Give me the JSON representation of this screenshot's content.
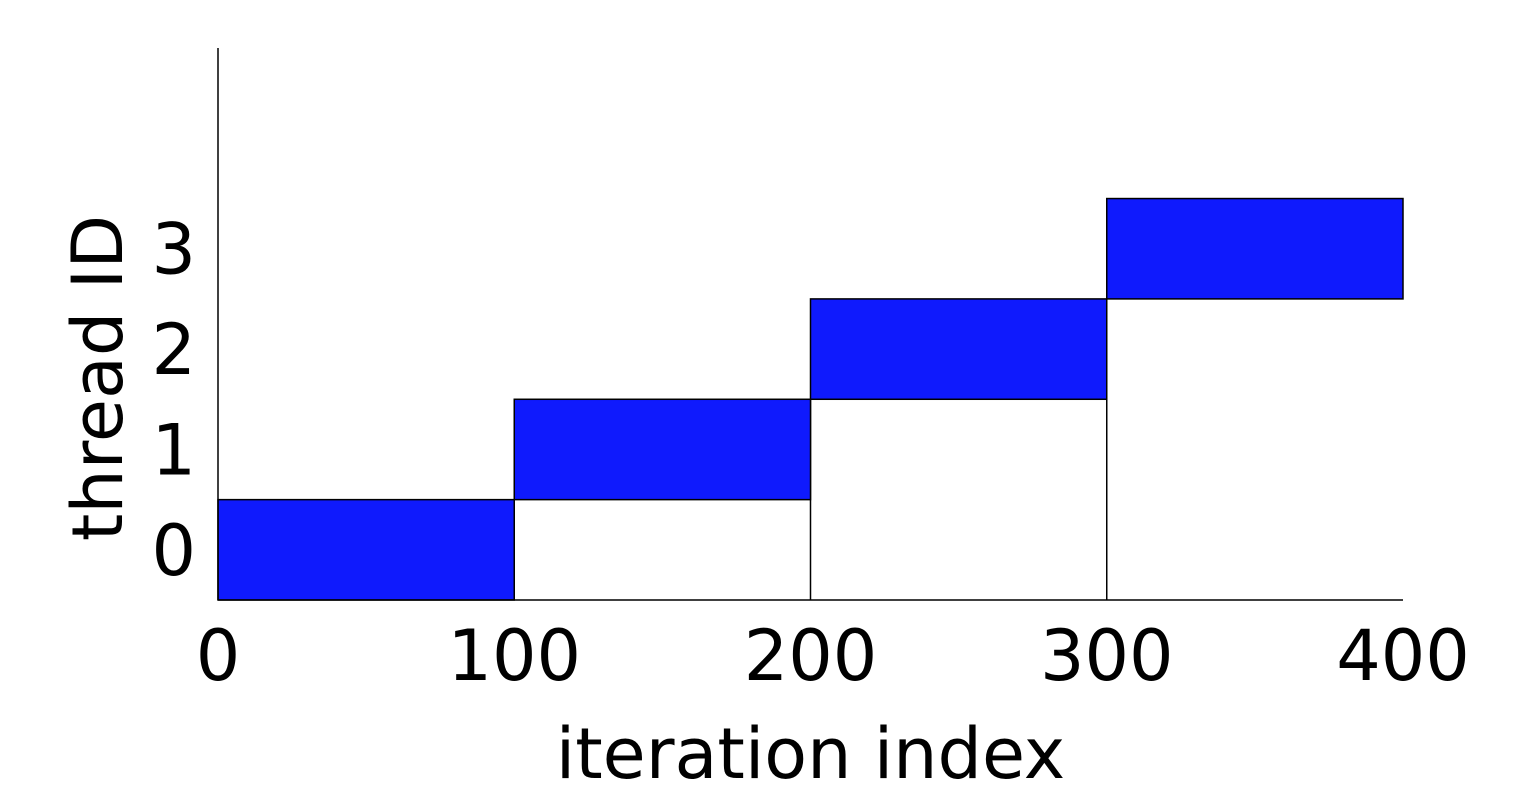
{
  "chart_data": {
    "type": "bar",
    "orientation": "horizontal-gantt",
    "xlabel": "iteration index",
    "ylabel": "thread ID",
    "xlim": [
      0,
      400
    ],
    "ylim": [
      -0.5,
      5.0
    ],
    "x_ticks": [
      0,
      100,
      200,
      300,
      400
    ],
    "x_tick_labels": [
      "0",
      "100",
      "200",
      "300",
      "400"
    ],
    "y_ticks": [
      0,
      1,
      2,
      3
    ],
    "y_tick_labels": [
      "0",
      "1",
      "2",
      "3"
    ],
    "grid": false,
    "bar_color": "#0f1afd",
    "bars": [
      {
        "thread": 0,
        "start": 0,
        "end": 100
      },
      {
        "thread": 1,
        "start": 100,
        "end": 200
      },
      {
        "thread": 2,
        "start": 200,
        "end": 300
      },
      {
        "thread": 3,
        "start": 300,
        "end": 400
      }
    ]
  }
}
